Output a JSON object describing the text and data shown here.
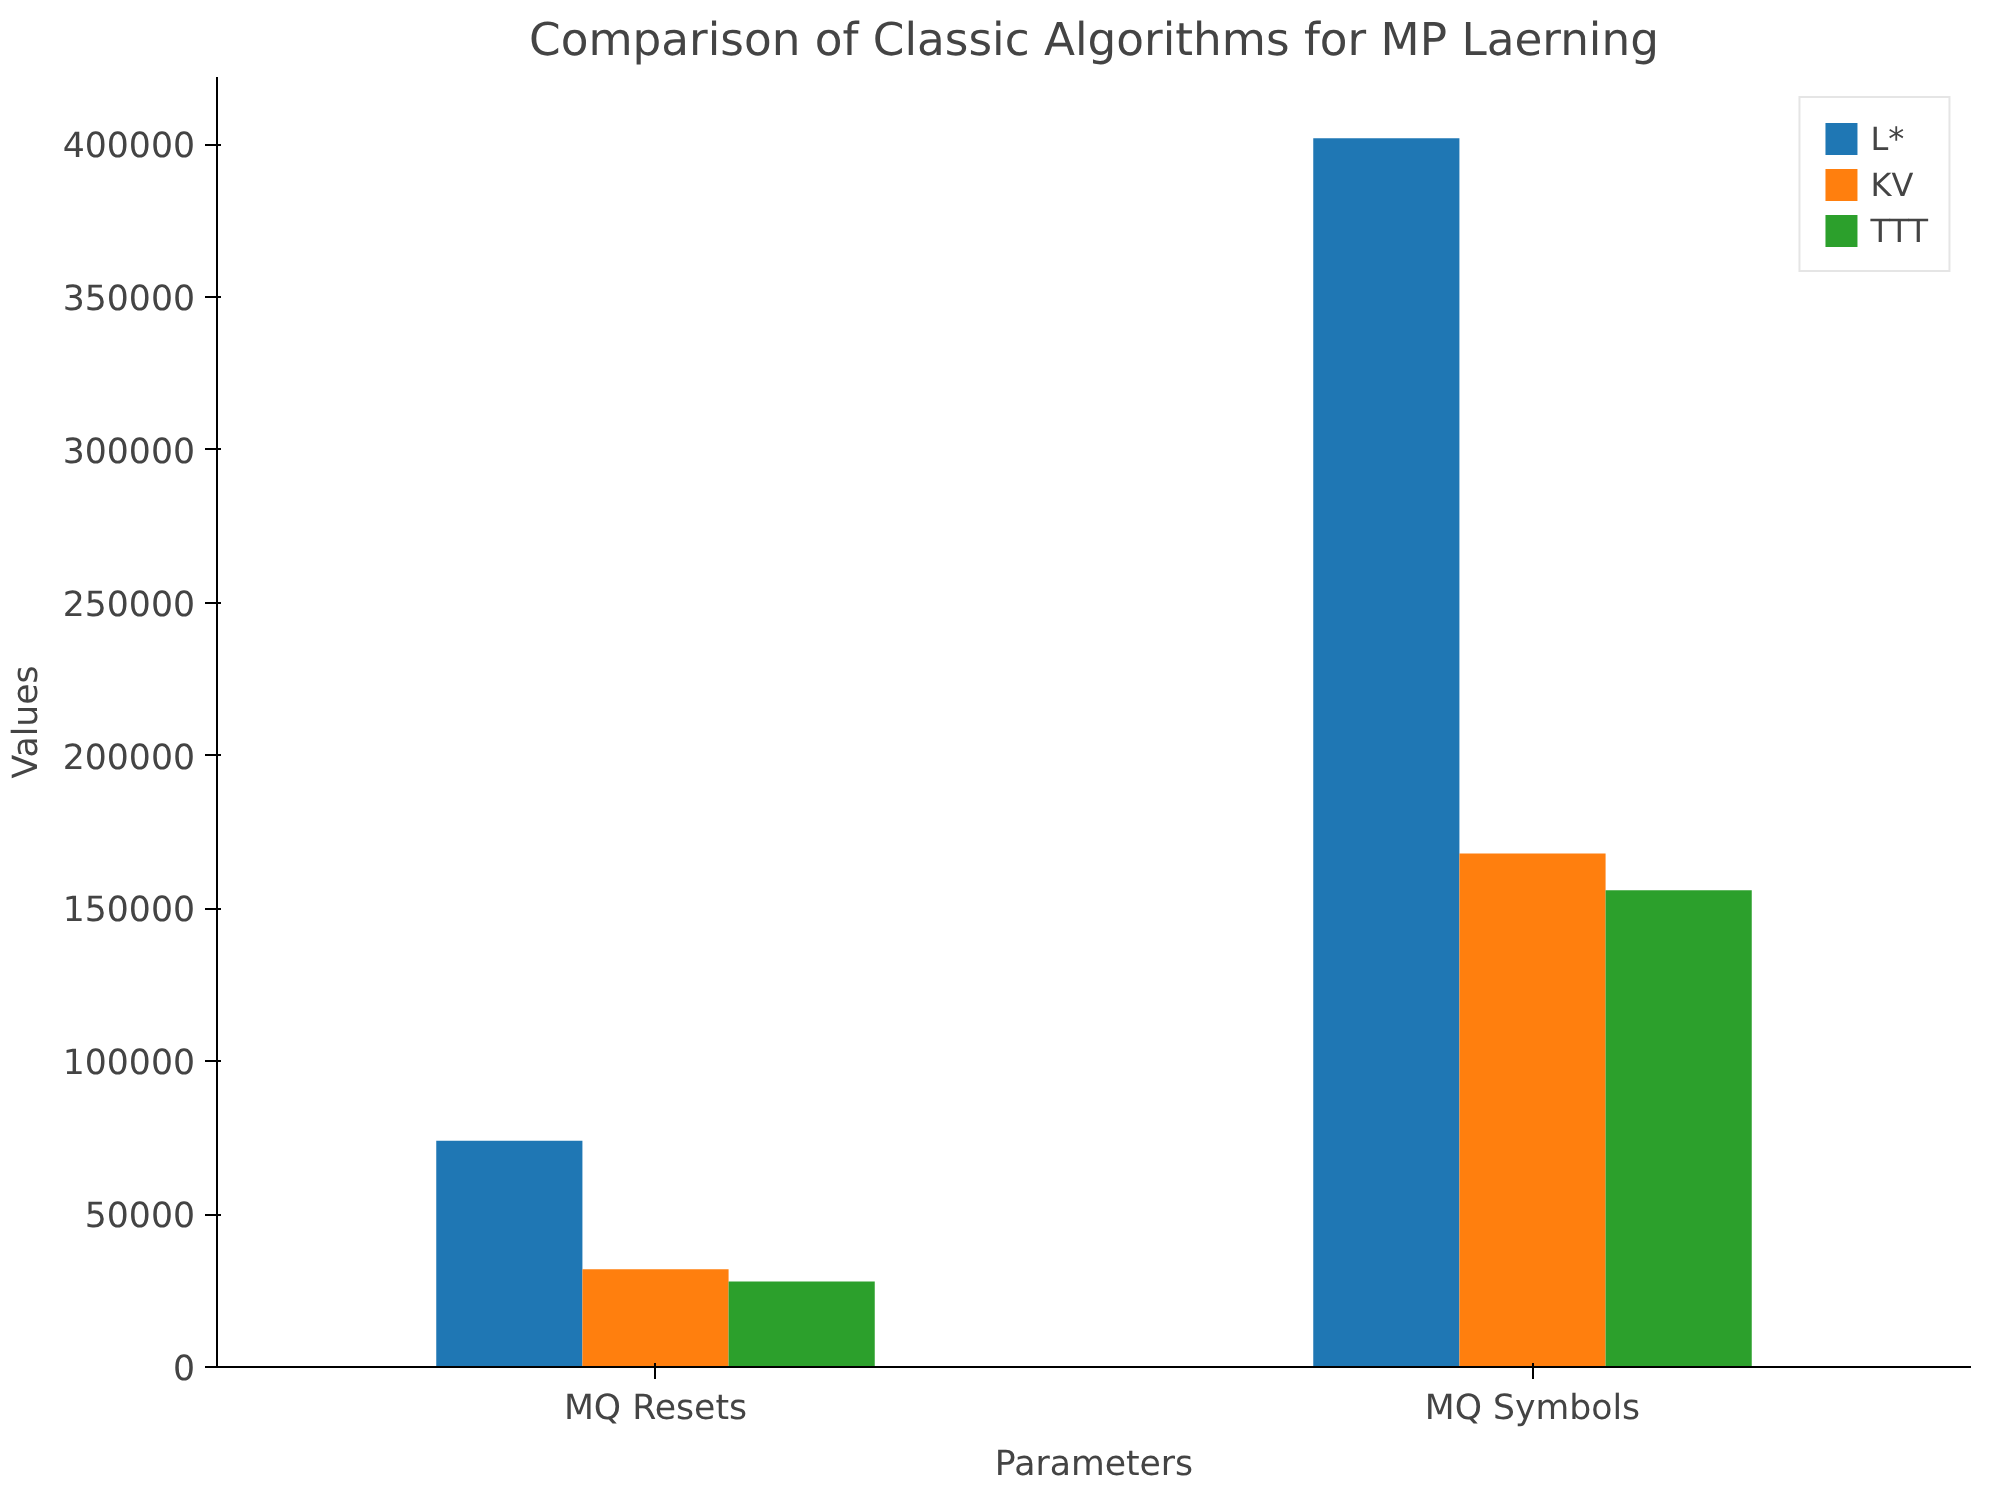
{
  "chart_data": {
    "type": "bar",
    "title": "Comparison of Classic Algorithms for MP Laerning",
    "xlabel": "Parameters",
    "ylabel": "Values",
    "categories": [
      "MQ Resets",
      "MQ Symbols"
    ],
    "series": [
      {
        "name": "L*",
        "color": "#1f77b4",
        "values": [
          74000,
          402000
        ]
      },
      {
        "name": "KV",
        "color": "#ff7f0e",
        "values": [
          32000,
          168000
        ]
      },
      {
        "name": "TTT",
        "color": "#2ca02c",
        "values": [
          28000,
          156000
        ]
      }
    ],
    "ylim": [
      0,
      422000
    ],
    "yticks": [
      0,
      50000,
      100000,
      150000,
      200000,
      250000,
      300000,
      350000,
      400000
    ],
    "grid": false,
    "legend": "top right"
  }
}
